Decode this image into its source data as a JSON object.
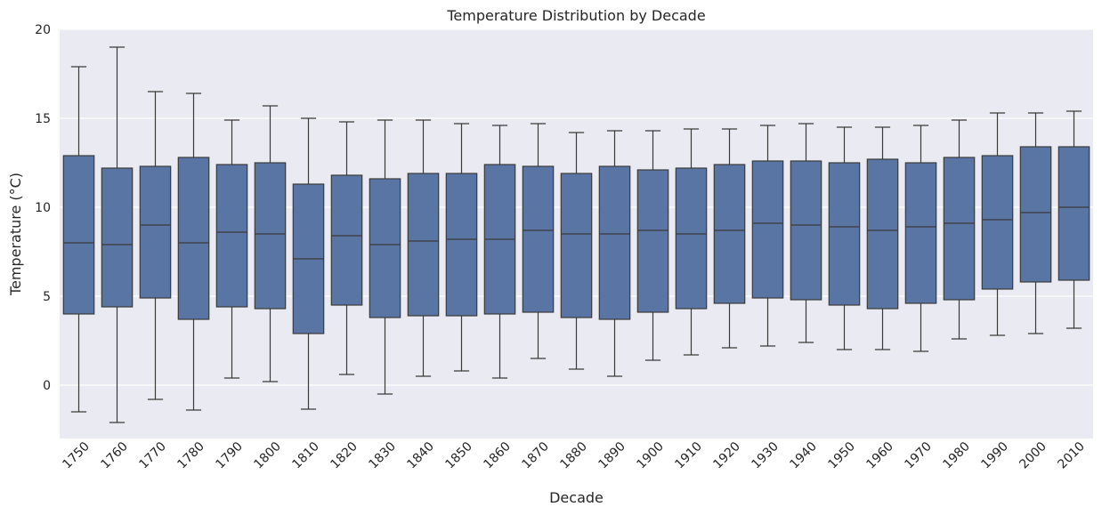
{
  "chart_data": {
    "type": "box",
    "title": "Temperature Distribution by Decade",
    "xlabel": "Decade",
    "ylabel": "Temperature (°C)",
    "ylim": [
      -3,
      20
    ],
    "yticks": [
      0,
      5,
      10,
      15,
      20
    ],
    "grid": true,
    "colors": {
      "background": "#eaeaf2",
      "box_fill": "#5875a4",
      "line": "#3a3a3a",
      "grid": "#ffffff"
    },
    "categories": [
      "1750",
      "1760",
      "1770",
      "1780",
      "1790",
      "1800",
      "1810",
      "1820",
      "1830",
      "1840",
      "1850",
      "1860",
      "1870",
      "1880",
      "1890",
      "1900",
      "1910",
      "1920",
      "1930",
      "1940",
      "1950",
      "1960",
      "1970",
      "1980",
      "1990",
      "2000",
      "2010"
    ],
    "boxes": [
      {
        "whislo": -1.5,
        "q1": 4.0,
        "med": 8.0,
        "q3": 12.9,
        "whishi": 17.9
      },
      {
        "whislo": -2.1,
        "q1": 4.4,
        "med": 7.9,
        "q3": 12.2,
        "whishi": 19.0
      },
      {
        "whislo": -0.8,
        "q1": 4.9,
        "med": 9.0,
        "q3": 12.3,
        "whishi": 16.5
      },
      {
        "whislo": -1.4,
        "q1": 3.7,
        "med": 8.0,
        "q3": 12.8,
        "whishi": 16.4
      },
      {
        "whislo": 0.4,
        "q1": 4.4,
        "med": 8.6,
        "q3": 12.4,
        "whishi": 14.9
      },
      {
        "whislo": 0.2,
        "q1": 4.3,
        "med": 8.5,
        "q3": 12.5,
        "whishi": 15.7
      },
      {
        "whislo": -1.35,
        "q1": 2.9,
        "med": 7.1,
        "q3": 11.3,
        "whishi": 15.0
      },
      {
        "whislo": 0.6,
        "q1": 4.5,
        "med": 8.4,
        "q3": 11.8,
        "whishi": 14.8
      },
      {
        "whislo": -0.5,
        "q1": 3.8,
        "med": 7.9,
        "q3": 11.6,
        "whishi": 14.9
      },
      {
        "whislo": 0.5,
        "q1": 3.9,
        "med": 8.1,
        "q3": 11.9,
        "whishi": 14.9
      },
      {
        "whislo": 0.8,
        "q1": 3.9,
        "med": 8.2,
        "q3": 11.9,
        "whishi": 14.7
      },
      {
        "whislo": 0.4,
        "q1": 4.0,
        "med": 8.2,
        "q3": 12.4,
        "whishi": 14.6
      },
      {
        "whislo": 1.5,
        "q1": 4.1,
        "med": 8.7,
        "q3": 12.3,
        "whishi": 14.7
      },
      {
        "whislo": 0.9,
        "q1": 3.8,
        "med": 8.5,
        "q3": 11.9,
        "whishi": 14.2
      },
      {
        "whislo": 0.5,
        "q1": 3.7,
        "med": 8.5,
        "q3": 12.3,
        "whishi": 14.3
      },
      {
        "whislo": 1.4,
        "q1": 4.1,
        "med": 8.7,
        "q3": 12.1,
        "whishi": 14.3
      },
      {
        "whislo": 1.7,
        "q1": 4.3,
        "med": 8.5,
        "q3": 12.2,
        "whishi": 14.4
      },
      {
        "whislo": 2.1,
        "q1": 4.6,
        "med": 8.7,
        "q3": 12.4,
        "whishi": 14.4
      },
      {
        "whislo": 2.2,
        "q1": 4.9,
        "med": 9.1,
        "q3": 12.6,
        "whishi": 14.6
      },
      {
        "whislo": 2.4,
        "q1": 4.8,
        "med": 9.0,
        "q3": 12.6,
        "whishi": 14.7
      },
      {
        "whislo": 2.0,
        "q1": 4.5,
        "med": 8.9,
        "q3": 12.5,
        "whishi": 14.5
      },
      {
        "whislo": 2.0,
        "q1": 4.3,
        "med": 8.7,
        "q3": 12.7,
        "whishi": 14.5
      },
      {
        "whislo": 1.9,
        "q1": 4.6,
        "med": 8.9,
        "q3": 12.5,
        "whishi": 14.6
      },
      {
        "whislo": 2.6,
        "q1": 4.8,
        "med": 9.1,
        "q3": 12.8,
        "whishi": 14.9
      },
      {
        "whislo": 2.8,
        "q1": 5.4,
        "med": 9.3,
        "q3": 12.9,
        "whishi": 15.3
      },
      {
        "whislo": 2.9,
        "q1": 5.8,
        "med": 9.7,
        "q3": 13.4,
        "whishi": 15.3
      },
      {
        "whislo": 3.2,
        "q1": 5.9,
        "med": 10.0,
        "q3": 13.4,
        "whishi": 15.4
      }
    ]
  }
}
